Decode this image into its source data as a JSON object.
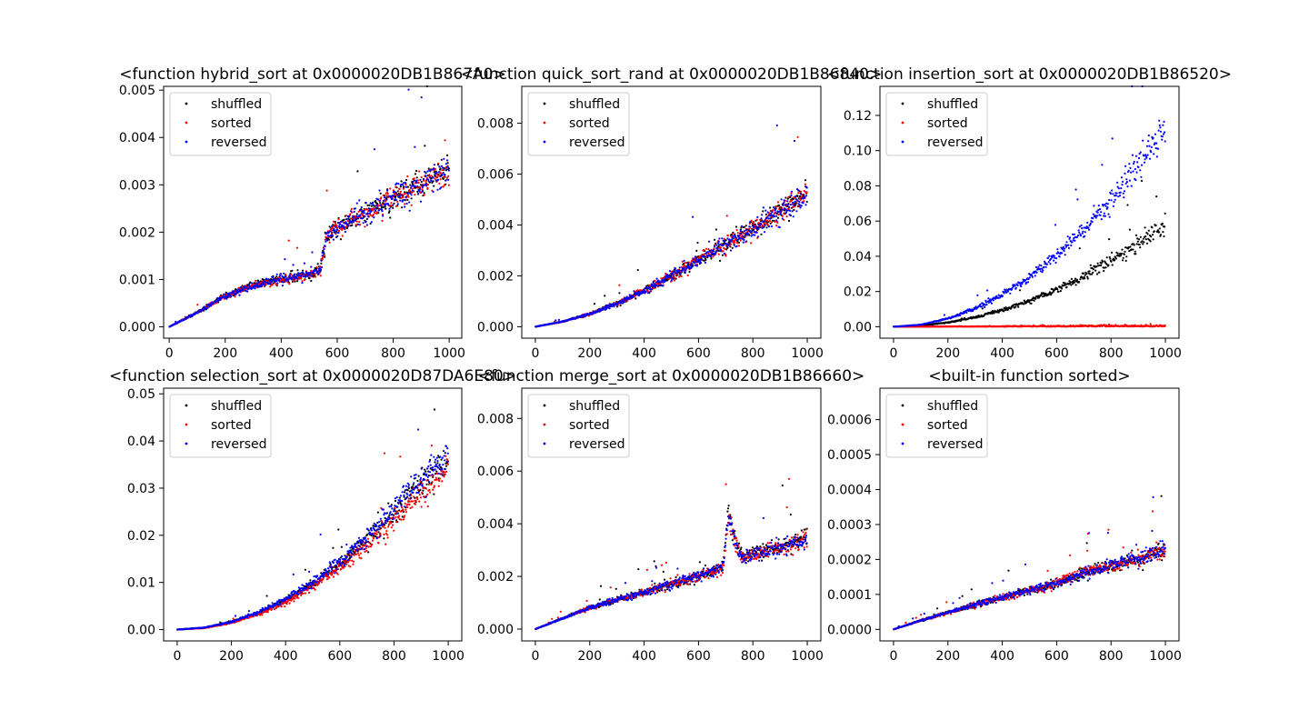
{
  "figure": {
    "background": "#ffffff",
    "legend_placement": "upper-left",
    "series_colors": {
      "shuffled": "#000000",
      "sorted": "#ff0000",
      "reversed": "#0000ff"
    }
  },
  "chart_data": [
    {
      "type": "scatter",
      "title": "<function hybrid_sort at 0x0000020DB1B867A0>",
      "xlim": [
        -20,
        1045
      ],
      "ylim": [
        -0.00024,
        0.00508
      ],
      "xticks": [
        0,
        200,
        400,
        600,
        800,
        1000
      ],
      "xtick_labels": [
        "0",
        "200",
        "400",
        "600",
        "800",
        "1000"
      ],
      "yticks": [
        0,
        0.001,
        0.002,
        0.003,
        0.004,
        0.005
      ],
      "ytick_labels": [
        "0.000",
        "0.001",
        "0.002",
        "0.003",
        "0.004",
        "0.005"
      ],
      "grid": false,
      "legend": [
        "shuffled",
        "sorted",
        "reversed"
      ],
      "series": [
        {
          "name": "shuffled",
          "color": "#000000",
          "x": [
            0,
            100,
            200,
            300,
            400,
            500,
            540,
            560,
            600,
            700,
            800,
            900,
            1000
          ],
          "y": [
            0.0,
            0.0003,
            0.00065,
            0.0009,
            0.001,
            0.0011,
            0.00125,
            0.0019,
            0.0021,
            0.0024,
            0.0027,
            0.003,
            0.0034
          ]
        },
        {
          "name": "sorted",
          "color": "#ff0000",
          "x": [
            0,
            100,
            200,
            300,
            400,
            500,
            540,
            560,
            600,
            700,
            800,
            900,
            1000
          ],
          "y": [
            0.0,
            0.0003,
            0.00065,
            0.00085,
            0.001,
            0.0011,
            0.0012,
            0.0019,
            0.0021,
            0.0024,
            0.0027,
            0.003,
            0.0033
          ]
        },
        {
          "name": "reversed",
          "color": "#0000ff",
          "x": [
            0,
            100,
            200,
            300,
            400,
            500,
            540,
            560,
            600,
            700,
            800,
            900,
            1000
          ],
          "y": [
            0.0,
            0.0003,
            0.00065,
            0.00085,
            0.001,
            0.0011,
            0.0012,
            0.0019,
            0.0021,
            0.0024,
            0.0027,
            0.003,
            0.0033
          ]
        }
      ]
    },
    {
      "type": "scatter",
      "title": "<function quick_sort_rand at 0x0000020DB1B86840>",
      "xlim": [
        -50,
        1050
      ],
      "ylim": [
        -0.00045,
        0.00945
      ],
      "xticks": [
        0,
        200,
        400,
        600,
        800,
        1000
      ],
      "xtick_labels": [
        "0",
        "200",
        "400",
        "600",
        "800",
        "1000"
      ],
      "yticks": [
        0,
        0.002,
        0.004,
        0.006,
        0.008
      ],
      "ytick_labels": [
        "0.000",
        "0.002",
        "0.004",
        "0.006",
        "0.008"
      ],
      "grid": false,
      "legend": [
        "shuffled",
        "sorted",
        "reversed"
      ],
      "series": [
        {
          "name": "shuffled",
          "color": "#000000",
          "x": [
            0,
            100,
            200,
            300,
            400,
            500,
            600,
            700,
            800,
            900,
            1000
          ],
          "y": [
            0.0,
            0.0002,
            0.0005,
            0.0009,
            0.0014,
            0.002,
            0.0026,
            0.0032,
            0.0038,
            0.0045,
            0.0052
          ]
        },
        {
          "name": "sorted",
          "color": "#ff0000",
          "x": [
            0,
            100,
            200,
            300,
            400,
            500,
            600,
            700,
            800,
            900,
            1000
          ],
          "y": [
            0.0,
            0.0002,
            0.0005,
            0.0009,
            0.0014,
            0.002,
            0.0026,
            0.0032,
            0.0038,
            0.0045,
            0.0052
          ]
        },
        {
          "name": "reversed",
          "color": "#0000ff",
          "x": [
            0,
            100,
            200,
            300,
            400,
            500,
            600,
            700,
            800,
            900,
            1000
          ],
          "y": [
            0.0,
            0.0002,
            0.0005,
            0.0009,
            0.0014,
            0.002,
            0.0026,
            0.0032,
            0.0038,
            0.0045,
            0.0052
          ]
        }
      ]
    },
    {
      "type": "scatter",
      "title": "<function insertion_sort at 0x0000020DB1B86520>",
      "xlim": [
        -50,
        1050
      ],
      "ylim": [
        -0.0065,
        0.1365
      ],
      "xticks": [
        0,
        200,
        400,
        600,
        800,
        1000
      ],
      "xtick_labels": [
        "0",
        "200",
        "400",
        "600",
        "800",
        "1000"
      ],
      "yticks": [
        0,
        0.02,
        0.04,
        0.06,
        0.08,
        0.1,
        0.12
      ],
      "ytick_labels": [
        "0.00",
        "0.02",
        "0.04",
        "0.06",
        "0.08",
        "0.10",
        "0.12"
      ],
      "grid": false,
      "legend": [
        "shuffled",
        "sorted",
        "reversed"
      ],
      "series": [
        {
          "name": "shuffled",
          "color": "#000000",
          "x": [
            0,
            100,
            200,
            300,
            400,
            500,
            600,
            700,
            800,
            900,
            1000
          ],
          "y": [
            0.0,
            0.0006,
            0.0023,
            0.0052,
            0.0093,
            0.0145,
            0.021,
            0.0285,
            0.0372,
            0.0471,
            0.0582
          ]
        },
        {
          "name": "sorted",
          "color": "#ff0000",
          "x": [
            0,
            100,
            200,
            300,
            400,
            500,
            600,
            700,
            800,
            900,
            1000
          ],
          "y": [
            0.0,
            1e-05,
            2e-05,
            3e-05,
            4e-05,
            5e-05,
            6e-05,
            7e-05,
            8e-05,
            9e-05,
            0.0001
          ]
        },
        {
          "name": "reversed",
          "color": "#0000ff",
          "x": [
            0,
            100,
            200,
            300,
            400,
            500,
            600,
            700,
            800,
            900,
            1000
          ],
          "y": [
            0.0,
            0.0011,
            0.0045,
            0.0101,
            0.0179,
            0.028,
            0.0403,
            0.0549,
            0.0717,
            0.0907,
            0.112
          ]
        }
      ]
    },
    {
      "type": "scatter",
      "title": "<function selection_sort at 0x0000020D87DA6E80>",
      "xlim": [
        -50,
        1050
      ],
      "ylim": [
        -0.0024,
        0.0512
      ],
      "xticks": [
        0,
        200,
        400,
        600,
        800,
        1000
      ],
      "xtick_labels": [
        "0",
        "200",
        "400",
        "600",
        "800",
        "1000"
      ],
      "yticks": [
        0,
        0.01,
        0.02,
        0.03,
        0.04,
        0.05
      ],
      "ytick_labels": [
        "0.00",
        "0.01",
        "0.02",
        "0.03",
        "0.04",
        "0.05"
      ],
      "grid": false,
      "legend": [
        "shuffled",
        "sorted",
        "reversed"
      ],
      "series": [
        {
          "name": "shuffled",
          "color": "#000000",
          "x": [
            0,
            100,
            200,
            300,
            400,
            500,
            600,
            700,
            800,
            900,
            1000
          ],
          "y": [
            0.0,
            0.0004,
            0.0016,
            0.0035,
            0.0062,
            0.0098,
            0.014,
            0.019,
            0.0248,
            0.0312,
            0.035
          ]
        },
        {
          "name": "sorted",
          "color": "#ff0000",
          "x": [
            0,
            100,
            200,
            300,
            400,
            500,
            600,
            700,
            800,
            900,
            1000
          ],
          "y": [
            0.0,
            0.0003,
            0.0014,
            0.0032,
            0.0057,
            0.009,
            0.013,
            0.0177,
            0.023,
            0.0288,
            0.034
          ]
        },
        {
          "name": "reversed",
          "color": "#0000ff",
          "x": [
            0,
            100,
            200,
            300,
            400,
            500,
            600,
            700,
            800,
            900,
            1000
          ],
          "y": [
            0.0,
            0.0004,
            0.0016,
            0.0036,
            0.0064,
            0.01,
            0.0143,
            0.0195,
            0.0255,
            0.0322,
            0.037
          ]
        }
      ]
    },
    {
      "type": "scatter",
      "title": "<function merge_sort at 0x0000020DB1B86660>",
      "xlim": [
        -50,
        1050
      ],
      "ylim": [
        -0.00045,
        0.00915
      ],
      "xticks": [
        0,
        200,
        400,
        600,
        800,
        1000
      ],
      "xtick_labels": [
        "0",
        "200",
        "400",
        "600",
        "800",
        "1000"
      ],
      "yticks": [
        0,
        0.002,
        0.004,
        0.006,
        0.008
      ],
      "ytick_labels": [
        "0.000",
        "0.002",
        "0.004",
        "0.006",
        "0.008"
      ],
      "grid": false,
      "legend": [
        "shuffled",
        "sorted",
        "reversed"
      ],
      "series": [
        {
          "name": "shuffled",
          "color": "#000000",
          "x": [
            0,
            100,
            200,
            300,
            400,
            500,
            600,
            690,
            710,
            740,
            760,
            800,
            900,
            1000
          ],
          "y": [
            0.0,
            0.0004,
            0.0008,
            0.0011,
            0.0014,
            0.0017,
            0.002,
            0.0023,
            0.0044,
            0.0032,
            0.0027,
            0.0028,
            0.0031,
            0.0035
          ]
        },
        {
          "name": "sorted",
          "color": "#ff0000",
          "x": [
            0,
            100,
            200,
            300,
            400,
            500,
            600,
            690,
            710,
            740,
            760,
            800,
            900,
            1000
          ],
          "y": [
            0.0,
            0.0004,
            0.0008,
            0.0011,
            0.0014,
            0.0017,
            0.002,
            0.0023,
            0.0042,
            0.0031,
            0.0027,
            0.0028,
            0.0031,
            0.0034
          ]
        },
        {
          "name": "reversed",
          "color": "#0000ff",
          "x": [
            0,
            100,
            200,
            300,
            400,
            500,
            600,
            690,
            710,
            740,
            760,
            800,
            900,
            1000
          ],
          "y": [
            0.0,
            0.0004,
            0.0008,
            0.0011,
            0.0014,
            0.0017,
            0.002,
            0.0023,
            0.0042,
            0.0031,
            0.0027,
            0.0028,
            0.0031,
            0.0034
          ]
        }
      ]
    },
    {
      "type": "scatter",
      "title": "<built-in function sorted>",
      "xlim": [
        -50,
        1050
      ],
      "ylim": [
        -3.3e-05,
        0.00069
      ],
      "xticks": [
        0,
        200,
        400,
        600,
        800,
        1000
      ],
      "xtick_labels": [
        "0",
        "200",
        "400",
        "600",
        "800",
        "1000"
      ],
      "yticks": [
        0,
        0.0001,
        0.0002,
        0.0003,
        0.0004,
        0.0005,
        0.0006
      ],
      "ytick_labels": [
        "0.0000",
        "0.0001",
        "0.0002",
        "0.0003",
        "0.0004",
        "0.0005",
        "0.0006"
      ],
      "grid": false,
      "legend": [
        "shuffled",
        "sorted",
        "reversed"
      ],
      "series": [
        {
          "name": "shuffled",
          "color": "#000000",
          "x": [
            0,
            100,
            200,
            300,
            400,
            500,
            600,
            700,
            800,
            900,
            1000
          ],
          "y": [
            0.0,
            2.5e-05,
            4.8e-05,
            7e-05,
            9e-05,
            0.00011,
            0.00013,
            0.00016,
            0.00018,
            0.0002,
            0.00023
          ]
        },
        {
          "name": "sorted",
          "color": "#ff0000",
          "x": [
            0,
            100,
            200,
            300,
            400,
            500,
            600,
            700,
            800,
            900,
            1000
          ],
          "y": [
            0.0,
            2.5e-05,
            4.8e-05,
            7e-05,
            9e-05,
            0.00011,
            0.00013,
            0.00016,
            0.00018,
            0.0002,
            0.00023
          ]
        },
        {
          "name": "reversed",
          "color": "#0000ff",
          "x": [
            0,
            100,
            200,
            300,
            400,
            500,
            600,
            700,
            800,
            900,
            1000
          ],
          "y": [
            0.0,
            2.5e-05,
            4.8e-05,
            7e-05,
            9e-05,
            0.00011,
            0.00013,
            0.00016,
            0.00018,
            0.0002,
            0.00023
          ]
        }
      ]
    }
  ]
}
